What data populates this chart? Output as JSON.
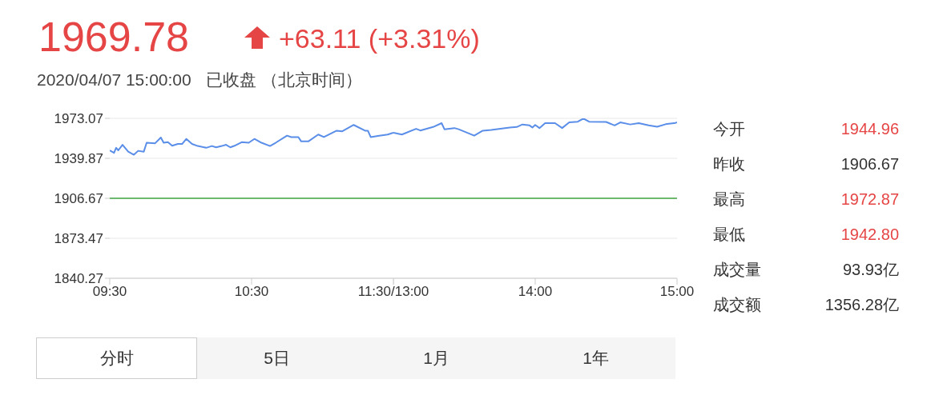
{
  "chart_data": [
    {
      "type": "line",
      "title": "1969.78",
      "subtitle": "2020/04/07 15:00:00",
      "annotations": [
        "+63.11 (+3.31%)",
        "已收盘 （北京时间）",
        "今开",
        "1944.96",
        "昨收",
        "1906.67",
        "最高",
        "1972.87",
        "最低",
        "1942.80",
        "成交量",
        "93.93亿",
        "成交额",
        "1356.28亿",
        "分时",
        "5日",
        "1月",
        "1年"
      ],
      "series": [
        {
          "color": "#5a8ee8",
          "x": [
            9.5,
            9.53,
            9.545,
            9.56,
            9.59,
            9.63,
            9.67,
            9.7,
            9.74,
            9.76,
            9.82,
            9.86,
            9.88,
            9.91,
            9.94,
            9.98,
            10.01,
            10.04,
            10.08,
            10.12,
            10.18,
            10.22,
            10.25,
            10.29,
            10.32,
            10.35,
            10.38,
            10.43,
            10.48,
            10.52,
            10.57,
            10.63,
            10.67,
            10.75,
            10.78,
            10.83,
            10.85,
            10.9,
            10.97,
            11.01,
            11.1,
            11.14,
            11.22,
            11.3,
            11.32,
            11.34,
            11.4,
            11.46,
            11.5
          ],
          "values": [
            1946.5,
            1944.4,
            1948.6,
            1946.5,
            1951.1,
            1945.4,
            1942.8,
            1946.1,
            1945.4,
            1952.8,
            1952.4,
            1957.1,
            1952.8,
            1953.3,
            1950.3,
            1951.8,
            1951.8,
            1956.0,
            1951.8,
            1950.1,
            1948.6,
            1950.1,
            1949.0,
            1950.1,
            1951.1,
            1949.0,
            1950.3,
            1953.3,
            1952.8,
            1956.0,
            1952.8,
            1950.1,
            1952.8,
            1958.7,
            1957.5,
            1957.5,
            1953.9,
            1953.9,
            1959.6,
            1957.5,
            1962.8,
            1962.3,
            1967.6,
            1962.8,
            1962.8,
            1957.5,
            1958.7,
            1959.6,
            1961.2
          ]
        }
      ],
      "xlim": [
        9.5,
        11.5
      ],
      "xticks": [
        {
          "value": 9.5,
          "label": "09:30"
        },
        {
          "value": 10.5,
          "label": "10:30"
        },
        {
          "value": 11.5,
          "label": "11:30/13:00"
        }
      ],
      "ylim": [
        1840.27,
        1973.07
      ],
      "yticks": [
        1840.27,
        1873.47,
        1906.67,
        1939.87,
        1973.07
      ],
      "ref_lines": [
        {
          "axis": "y",
          "value": 1906.67,
          "color": "#6cb86c"
        }
      ],
      "grid": "y",
      "marker": "none",
      "line_style": "solid"
    },
    {
      "type": "line",
      "series": [
        {
          "color": "#5a8ee8",
          "x": [
            13,
            13.06,
            13.16,
            13.19,
            13.28,
            13.34,
            13.36,
            13.43,
            13.46,
            13.57,
            13.63,
            13.69,
            13.82,
            13.87,
            13.91,
            13.96,
            13.98,
            14,
            14.03,
            14.07,
            14.14,
            14.19,
            14.24,
            14.3,
            14.34,
            14.38,
            14.5,
            14.56,
            14.6,
            14.67,
            14.73,
            14.8,
            14.86,
            14.92,
            14.99,
            15
          ],
          "values": [
            1961.2,
            1959.6,
            1964.4,
            1963.0,
            1965.9,
            1969.1,
            1964.0,
            1965.0,
            1964.0,
            1958.7,
            1962.8,
            1963.4,
            1965.5,
            1965.9,
            1968.0,
            1967.2,
            1965.5,
            1967.6,
            1965.0,
            1969.1,
            1969.1,
            1965.0,
            1969.7,
            1970.3,
            1972.9,
            1970.3,
            1970.1,
            1967.2,
            1969.7,
            1968.0,
            1969.1,
            1967.2,
            1966.1,
            1968.2,
            1969.3,
            1969.8
          ]
        }
      ],
      "xlim": [
        13,
        15
      ],
      "xticks": [
        {
          "value": 13,
          "label": null
        },
        {
          "value": 14,
          "label": "14:00"
        },
        {
          "value": 15,
          "label": "15:00"
        }
      ],
      "ylim": [
        1840.27,
        1973.07
      ],
      "yticks": [
        1840.27,
        1873.47,
        1906.67,
        1939.87,
        1973.07
      ],
      "ref_lines": [
        {
          "axis": "y",
          "value": 1906.67,
          "color": "#6cb86c"
        }
      ],
      "grid": "y",
      "tick_labels": "x",
      "marker": "none",
      "line_style": "solid"
    }
  ]
}
